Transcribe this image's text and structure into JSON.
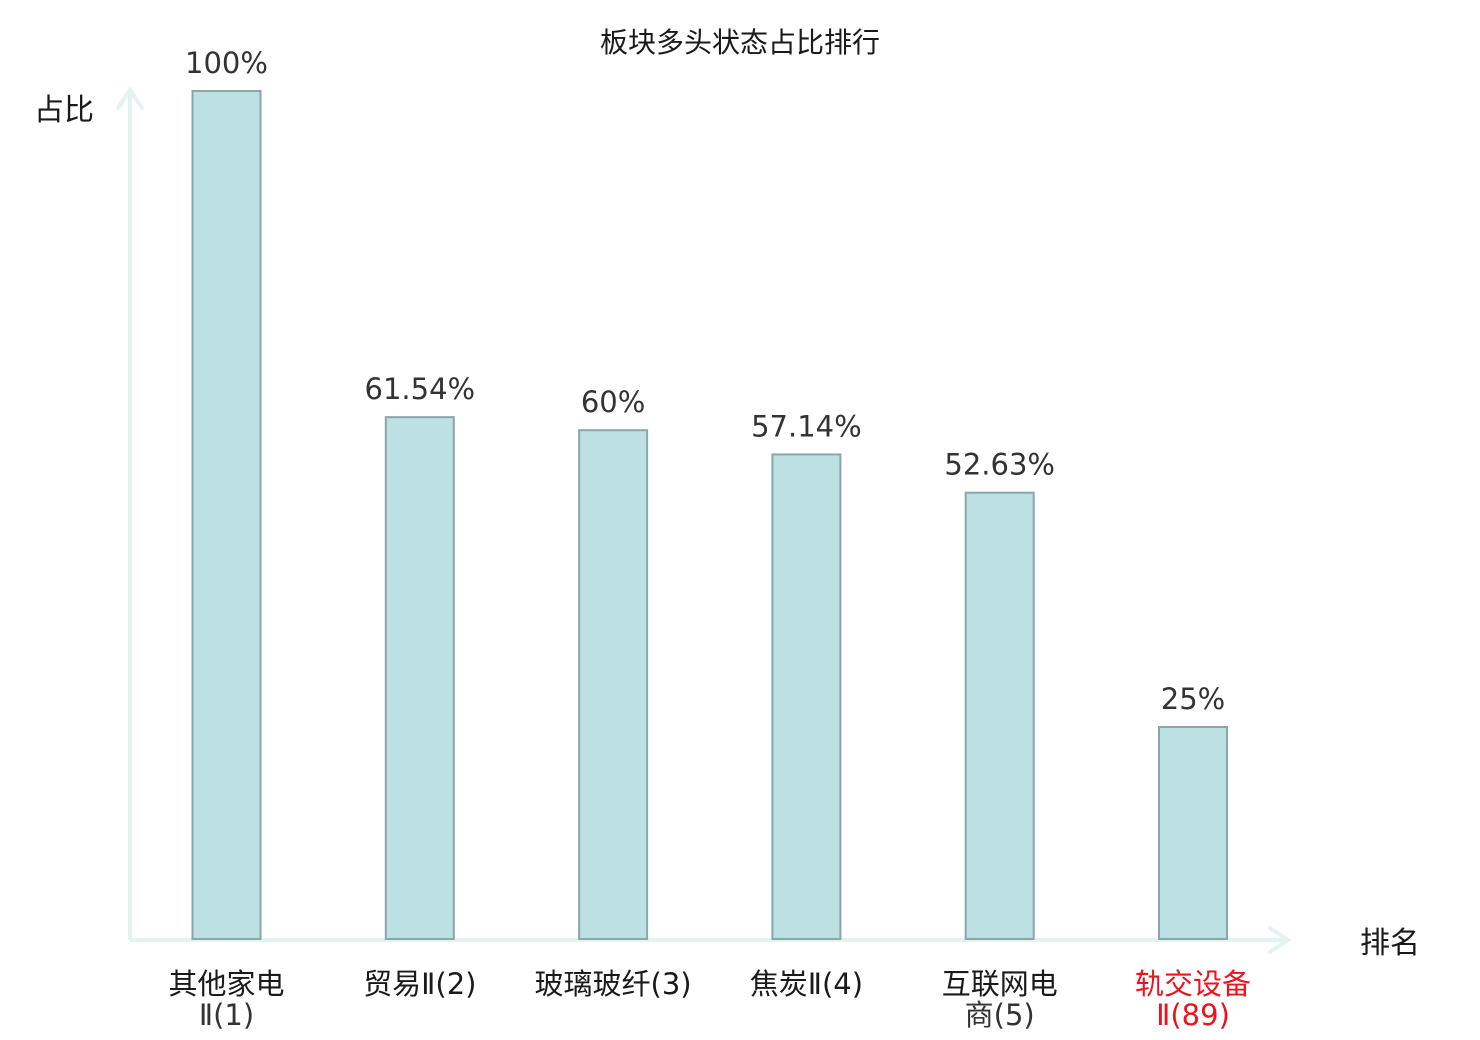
{
  "chart_data": {
    "type": "bar",
    "title": "板块多头状态占比排行",
    "xlabel": "排名",
    "ylabel": "占比",
    "ylim": [
      0,
      100
    ],
    "grid": false,
    "value_suffix": "%",
    "categories": [
      {
        "line1": "其他家电",
        "line2": "Ⅱ(1)",
        "highlight": false
      },
      {
        "line1": "贸易Ⅱ(2)",
        "line2": "",
        "highlight": false
      },
      {
        "line1": "玻璃玻纤(3)",
        "line2": "",
        "highlight": false
      },
      {
        "line1": "焦炭Ⅱ(4)",
        "line2": "",
        "highlight": false
      },
      {
        "line1": "互联网电",
        "line2": "商(5)",
        "highlight": false
      },
      {
        "line1": "轨交设备",
        "line2": "Ⅱ(89)",
        "highlight": true
      }
    ],
    "series": [
      {
        "values": [
          100,
          61.54,
          60,
          57.14,
          52.63,
          25
        ]
      }
    ],
    "value_labels": [
      "100%",
      "61.54%",
      "60%",
      "57.14%",
      "52.63%",
      "25%"
    ],
    "colors": {
      "bar_fill": "#bde0e3",
      "bar_stroke": "#8aa6ab",
      "axis": "#e3f3f0",
      "highlight_text": "#e8141e",
      "text": "#1a1a1a"
    }
  }
}
